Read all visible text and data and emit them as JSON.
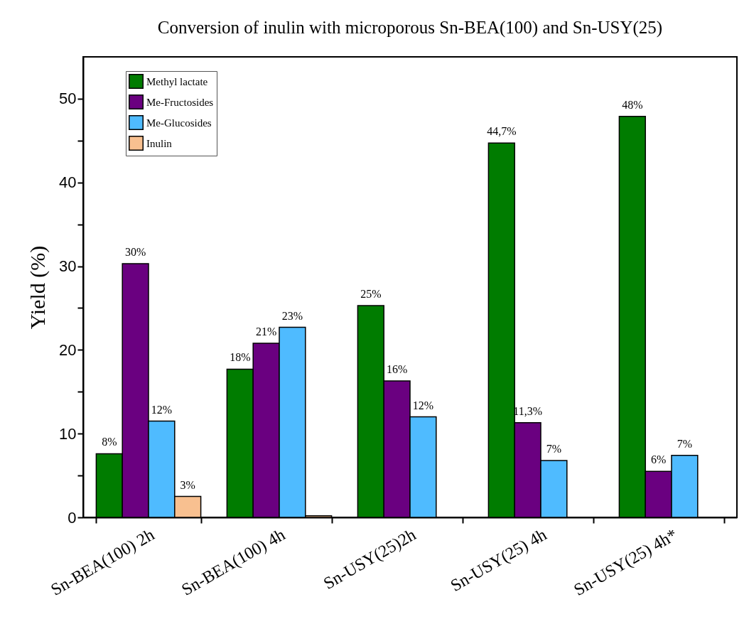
{
  "chart_data": {
    "type": "bar",
    "title": "Conversion of inulin with microporous Sn-BEA(100) and Sn-USY(25)",
    "ylabel": "Yield (%)",
    "categories": [
      "Sn-BEA(100) 2h",
      "Sn-BEA(100) 4h",
      "Sn-USY(25)2h",
      "Sn-USY(25) 4h",
      "Sn-USY(25) 4h*"
    ],
    "series": [
      {
        "name": "Methyl lactate",
        "color": "#007c00",
        "values": [
          7.6,
          17.7,
          25.3,
          44.7,
          47.9
        ],
        "value_labels": [
          "8%",
          "18%",
          "25%",
          "44,7%",
          "48%"
        ]
      },
      {
        "name": "Me-Fructosides",
        "color": "#6a0080",
        "values": [
          30.3,
          20.8,
          16.3,
          11.3,
          5.5
        ],
        "value_labels": [
          "30%",
          "21%",
          "16%",
          "11,3%",
          "6%"
        ]
      },
      {
        "name": "Me-Glucosides",
        "color": "#4fbbff",
        "values": [
          11.5,
          22.7,
          12.0,
          6.8,
          7.4
        ],
        "value_labels": [
          "12%",
          "23%",
          "12%",
          "7%",
          "7%"
        ]
      },
      {
        "name": "Inulin",
        "color": "#f8c090",
        "values": [
          2.5,
          0.2,
          null,
          null,
          null
        ],
        "value_labels": [
          "3%",
          null,
          null,
          null,
          null
        ]
      }
    ],
    "ylim": [
      0,
      55
    ],
    "yticks": [
      0,
      {
        "value": 5,
        "label": null
      },
      10,
      {
        "value": 15,
        "label": null
      },
      20,
      {
        "value": 25,
        "label": null
      },
      30,
      {
        "value": 35,
        "label": null
      },
      40,
      {
        "value": 45,
        "label": null
      },
      50
    ],
    "grid": false,
    "legend": "top left"
  }
}
